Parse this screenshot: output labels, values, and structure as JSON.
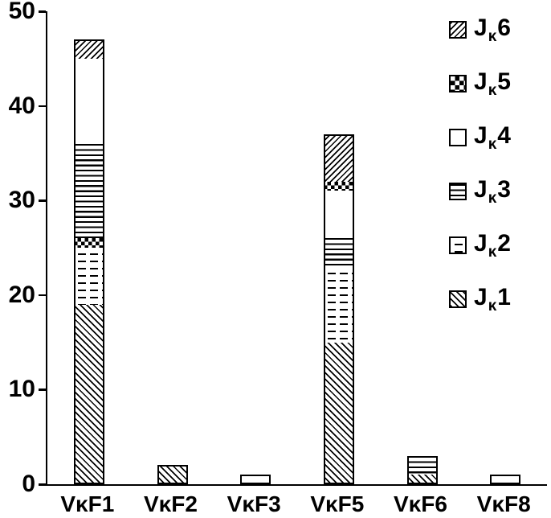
{
  "figure": {
    "background": "#ffffff",
    "ink": "#000000"
  },
  "chart_data": {
    "type": "bar",
    "stacked": true,
    "title": "",
    "xlabel": "",
    "ylabel": "",
    "ylim": [
      0,
      50
    ],
    "yticks": [
      0,
      10,
      20,
      30,
      40,
      50
    ],
    "grid": false,
    "categories": [
      "VκF1",
      "VκF2",
      "VκF3",
      "VκF5",
      "VκF6",
      "VκF8"
    ],
    "patterns": {
      "Jκ1": "hatch-back",
      "Jκ2": "dashes",
      "Jκ3": "hlines",
      "Jκ4": "plain",
      "Jκ5": "checker",
      "Jκ6": "hatch-forward"
    },
    "legend": {
      "position": "top-right",
      "items": [
        {
          "main": "J",
          "sub": "κ",
          "num": "6",
          "series": "Jκ6",
          "pattern": "hatch-forward"
        },
        {
          "main": "J",
          "sub": "κ",
          "num": "5",
          "series": "Jκ5",
          "pattern": "checker"
        },
        {
          "main": "J",
          "sub": "κ",
          "num": "4",
          "series": "Jκ4",
          "pattern": "plain"
        },
        {
          "main": "J",
          "sub": "κ",
          "num": "3",
          "series": "Jκ3",
          "pattern": "hlines"
        },
        {
          "main": "J",
          "sub": "κ",
          "num": "2",
          "series": "Jκ2",
          "pattern": "dashes"
        },
        {
          "main": "J",
          "sub": "κ",
          "num": "1",
          "series": "Jκ1",
          "pattern": "hatch-back"
        }
      ]
    },
    "series": [
      {
        "name": "Jκ1",
        "pattern": "hatch-back",
        "values": [
          19,
          2,
          0,
          15,
          1,
          0
        ]
      },
      {
        "name": "Jκ2",
        "pattern": "dashes",
        "values": [
          6,
          0,
          0,
          8,
          0,
          0
        ]
      },
      {
        "name": "Jκ3",
        "pattern": "hlines",
        "values": [
          10,
          0,
          0,
          3,
          2,
          0
        ]
      },
      {
        "name": "Jκ4",
        "pattern": "plain",
        "values": [
          9,
          0,
          1,
          5,
          0,
          1
        ]
      },
      {
        "name": "Jκ5",
        "pattern": "checker",
        "values": [
          1,
          0,
          0,
          1,
          0,
          0
        ]
      },
      {
        "name": "Jκ6",
        "pattern": "hatch-forward",
        "values": [
          2,
          0,
          0,
          5,
          0,
          0
        ]
      }
    ],
    "stack_order": "per-bar, bottom to top, as listed in bars[].segments",
    "bars": [
      {
        "category": "VκF1",
        "total": 47,
        "segments": [
          {
            "series": "Jκ1",
            "value": 19
          },
          {
            "series": "Jκ2",
            "value": 6
          },
          {
            "series": "Jκ5",
            "value": 1
          },
          {
            "series": "Jκ3",
            "value": 10
          },
          {
            "series": "Jκ4",
            "value": 9
          },
          {
            "series": "Jκ6",
            "value": 2
          }
        ]
      },
      {
        "category": "VκF2",
        "total": 2,
        "segments": [
          {
            "series": "Jκ1",
            "value": 2
          }
        ]
      },
      {
        "category": "VκF3",
        "total": 1,
        "segments": [
          {
            "series": "Jκ4",
            "value": 1
          }
        ]
      },
      {
        "category": "VκF5",
        "total": 37,
        "segments": [
          {
            "series": "Jκ1",
            "value": 15
          },
          {
            "series": "Jκ2",
            "value": 8
          },
          {
            "series": "Jκ3",
            "value": 3
          },
          {
            "series": "Jκ4",
            "value": 5
          },
          {
            "series": "Jκ5",
            "value": 1
          },
          {
            "series": "Jκ6",
            "value": 5
          }
        ]
      },
      {
        "category": "VκF6",
        "total": 3,
        "segments": [
          {
            "series": "Jκ1",
            "value": 1
          },
          {
            "series": "Jκ3",
            "value": 2
          }
        ]
      },
      {
        "category": "VκF8",
        "total": 1,
        "segments": [
          {
            "series": "Jκ4",
            "value": 1
          }
        ]
      }
    ]
  }
}
